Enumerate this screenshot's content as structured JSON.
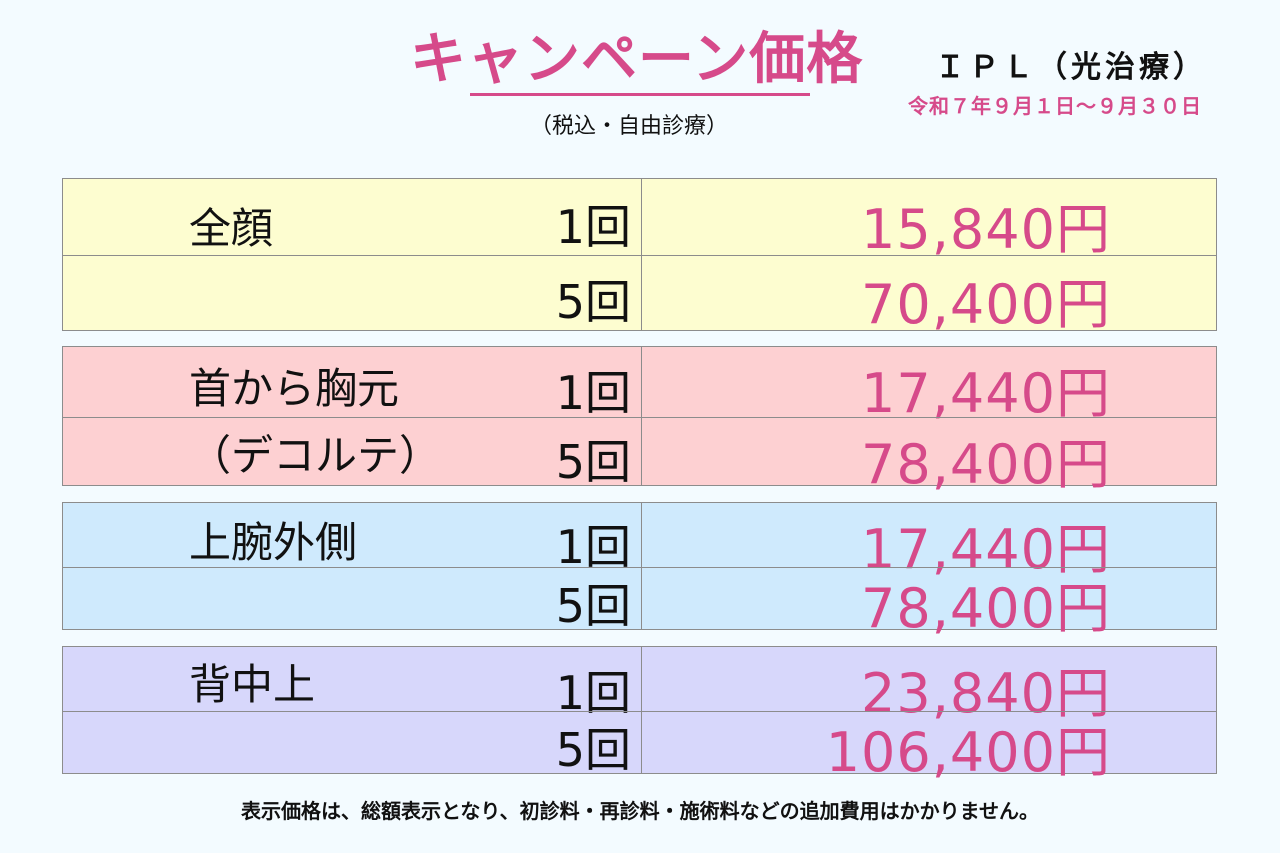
{
  "header": {
    "title": "キャンペーン価格",
    "tax_note": "（税込・自由診療）",
    "treatment": "ＩＰＬ（光治療）",
    "period": "令和７年９月１日～９月３０日"
  },
  "groups": [
    {
      "color": "#fdfdd0",
      "rows": [
        {
          "part": "全顔",
          "times": "1回",
          "price": "15,840円"
        },
        {
          "part": "",
          "times": "5回",
          "price": "70,400円"
        }
      ]
    },
    {
      "color": "#fdd0d2",
      "rows": [
        {
          "part": "首から胸元",
          "times": "1回",
          "price": "17,440円"
        },
        {
          "part": "（デコルテ）",
          "times": "5回",
          "price": "78,400円"
        }
      ]
    },
    {
      "color": "#cfeafd",
      "rows": [
        {
          "part": "上腕外側",
          "times": "1回",
          "price": "17,440円"
        },
        {
          "part": "",
          "times": "5回",
          "price": "78,400円"
        }
      ]
    },
    {
      "color": "#d7d7fb",
      "rows": [
        {
          "part": "背中上",
          "times": "1回",
          "price": "23,840円"
        },
        {
          "part": "",
          "times": "5回",
          "price": "106,400円"
        }
      ]
    }
  ],
  "footer": "表示価格は、総額表示となり、初診料・再診料・施術料などの追加費用はかかりません。"
}
